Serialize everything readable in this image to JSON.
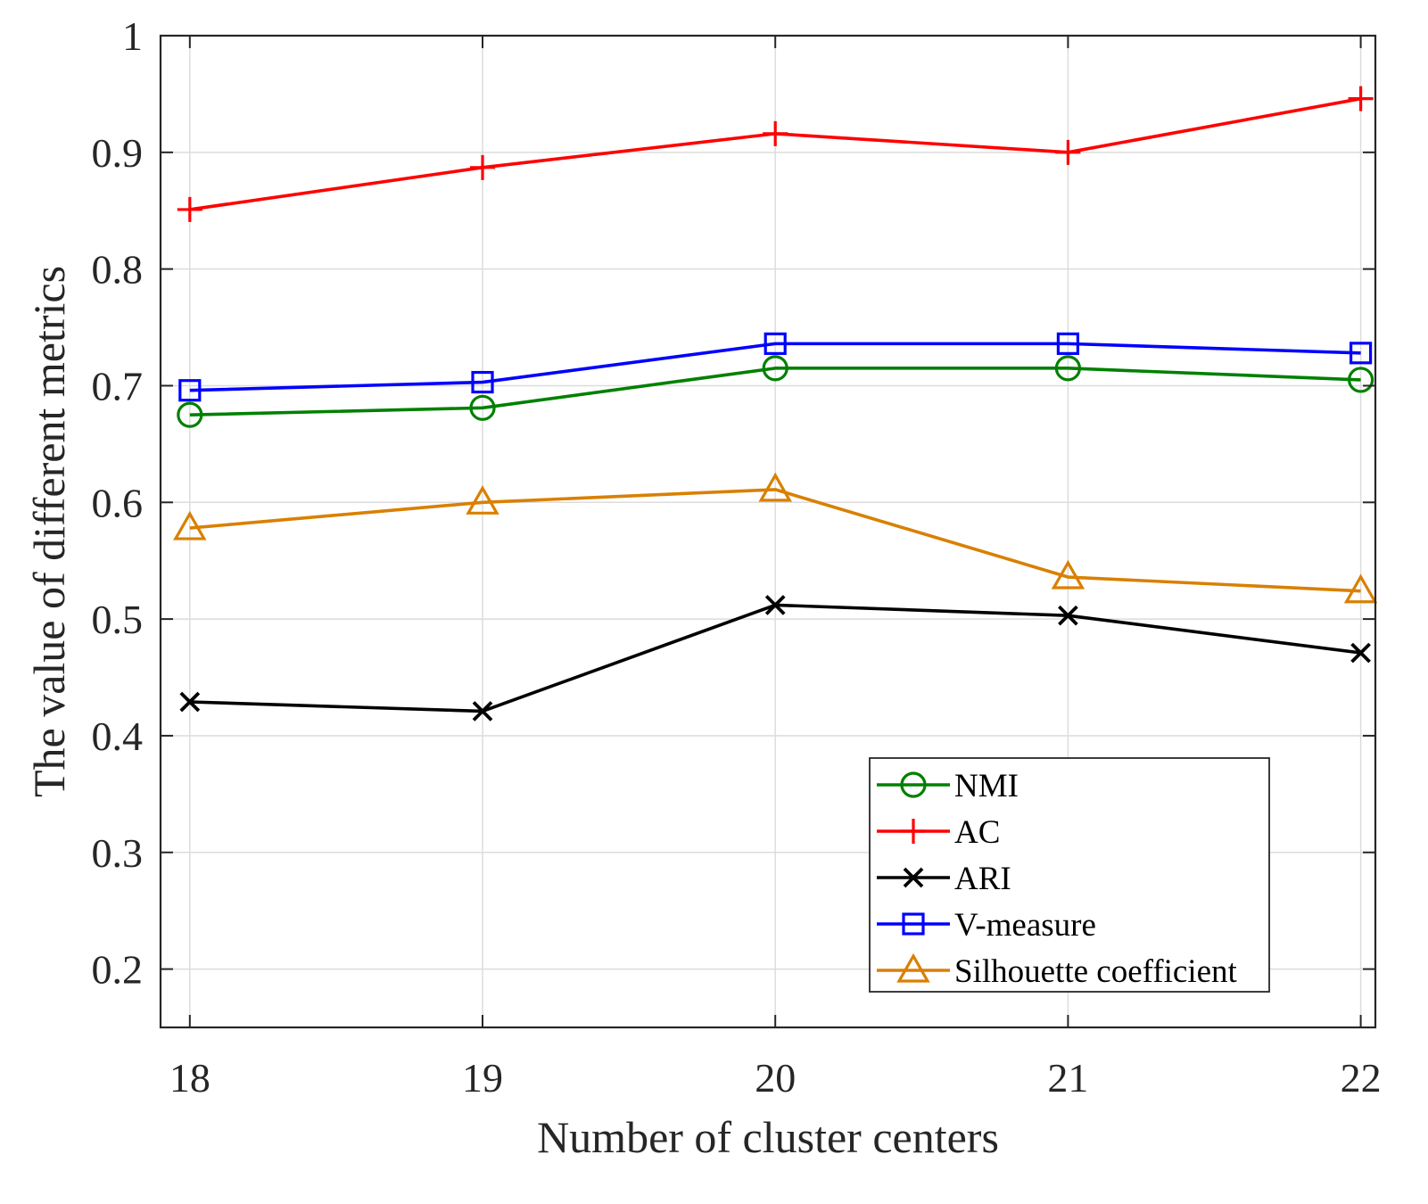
{
  "chart_data": {
    "type": "line",
    "title": "",
    "xlabel": "Number of cluster centers",
    "ylabel": "The value of different metrics",
    "x": [
      18,
      19,
      20,
      21,
      22
    ],
    "x_tick_labels": [
      "18",
      "19",
      "20",
      "21",
      "22"
    ],
    "xlim": [
      17.9,
      22.05
    ],
    "ylim": [
      0.15,
      1.0
    ],
    "y_ticks": [
      0.2,
      0.3,
      0.4,
      0.5,
      0.6,
      0.7,
      0.8,
      0.9,
      1.0
    ],
    "y_tick_labels": [
      "0.2",
      "0.3",
      "0.4",
      "0.5",
      "0.6",
      "0.7",
      "0.8",
      "0.9",
      "1"
    ],
    "grid": true,
    "legend_position": "bottom-right",
    "series": [
      {
        "name": "NMI",
        "color": "#008000",
        "marker": "circle",
        "values": [
          0.675,
          0.681,
          0.715,
          0.715,
          0.705
        ]
      },
      {
        "name": "AC",
        "color": "#ff0000",
        "marker": "plus",
        "values": [
          0.851,
          0.887,
          0.916,
          0.9,
          0.946
        ]
      },
      {
        "name": "ARI",
        "color": "#000000",
        "marker": "x",
        "values": [
          0.429,
          0.421,
          0.512,
          0.503,
          0.471
        ]
      },
      {
        "name": "V-measure",
        "color": "#0000ff",
        "marker": "square",
        "values": [
          0.696,
          0.703,
          0.736,
          0.736,
          0.728
        ]
      },
      {
        "name": "Silhouette coefficient",
        "color": "#d98000",
        "marker": "triangle",
        "values": [
          0.578,
          0.6,
          0.611,
          0.536,
          0.524
        ]
      }
    ]
  }
}
